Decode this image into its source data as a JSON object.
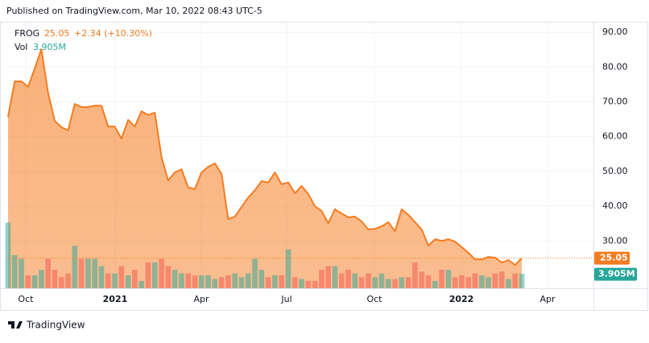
{
  "chart_data": {
    "type": "area",
    "published": "Published on TradingView.com, Mar 10, 2022 08:43 UTC-5",
    "symbol": "FROG",
    "last_label": "25.05",
    "change": "+2.34 (+10.30%)",
    "volume_name": "Vol",
    "volume_label": "3.905M",
    "brand": "TradingView",
    "color": "#f57c20",
    "series": [
      {
        "name": "FROG",
        "values": [
          65.7,
          75.9,
          75.9,
          74.3,
          79.6,
          85.1,
          72.6,
          64.5,
          62.7,
          61.8,
          69.4,
          68.5,
          68.5,
          68.9,
          68.9,
          62.9,
          62.9,
          59.4,
          64.8,
          62.9,
          67.3,
          66.2,
          66.9,
          54.1,
          47.4,
          49.7,
          50.6,
          45.4,
          44.9,
          49.7,
          51.3,
          52.3,
          49.3,
          36.3,
          37.0,
          39.8,
          42.5,
          44.6,
          47.2,
          46.8,
          49.7,
          46.3,
          46.8,
          43.7,
          45.8,
          43.5,
          40.0,
          38.6,
          35.1,
          39.1,
          37.9,
          36.8,
          37.0,
          35.6,
          33.3,
          33.5,
          34.2,
          35.4,
          32.8,
          39.1,
          37.5,
          35.4,
          33.3,
          28.7,
          30.5,
          30.0,
          30.5,
          29.8,
          28.2,
          26.6,
          24.7,
          24.7,
          25.4,
          25.2,
          23.8,
          24.5,
          23.1,
          25.05
        ]
      },
      {
        "name": "Vol",
        "up_color": "rgba(38,166,154,0.5)",
        "down_color": "rgba(239,83,80,0.5)",
        "values": [
          17.8,
          9,
          8,
          3.5,
          3.5,
          5,
          8,
          5,
          3,
          4,
          11.5,
          8,
          8,
          8,
          6,
          4,
          4,
          6,
          3.5,
          5,
          2,
          7,
          7,
          8,
          6,
          5,
          4,
          4,
          3.5,
          3.5,
          3.5,
          2.5,
          3,
          3.5,
          4,
          3,
          4,
          8,
          5,
          3,
          3.5,
          3.5,
          10.5,
          3,
          2.5,
          2,
          2,
          5,
          6,
          6,
          4,
          5,
          4,
          3,
          4,
          3,
          4,
          2.5,
          2.5,
          3,
          3,
          7,
          4.5,
          3.5,
          2,
          5,
          5,
          3,
          3.5,
          3,
          4,
          3.5,
          3,
          4,
          4.5,
          2.5,
          4,
          3.905
        ]
      }
    ],
    "xlim": [
      -0.24,
      87.74
    ],
    "xticks": [
      {
        "value": 2.65,
        "label": "Oct"
      },
      {
        "value": 16.05,
        "label": "2021"
      },
      {
        "value": 28.97,
        "label": "Apr"
      },
      {
        "value": 41.76,
        "label": "Jul"
      },
      {
        "value": 54.91,
        "label": "Oct"
      },
      {
        "value": 67.95,
        "label": "2022"
      },
      {
        "value": 80.86,
        "label": "Apr"
      }
    ],
    "ylim": [
      16.4,
      92.8
    ],
    "yticks": [
      {
        "value": 30,
        "label": "30.00"
      },
      {
        "value": 40,
        "label": "40.00"
      },
      {
        "value": 50,
        "label": "50.00"
      },
      {
        "value": 60,
        "label": "60.00"
      },
      {
        "value": 70,
        "label": "70.00"
      },
      {
        "value": 80,
        "label": "80.00"
      },
      {
        "value": 90,
        "label": "90.00"
      }
    ],
    "volume_lim": [
      0,
      72
    ],
    "grid": true
  }
}
